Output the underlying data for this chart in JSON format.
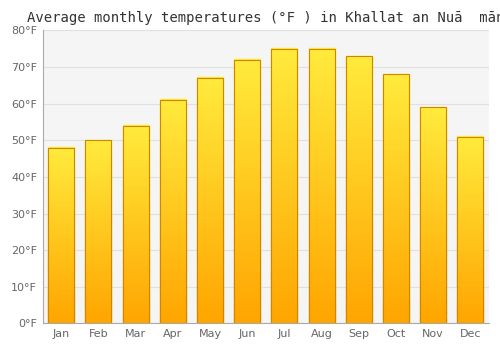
{
  "title": "Average monthly temperatures (°F ) in Khallat an Nuā  mān",
  "months": [
    "Jan",
    "Feb",
    "Mar",
    "Apr",
    "May",
    "Jun",
    "Jul",
    "Aug",
    "Sep",
    "Oct",
    "Nov",
    "Dec"
  ],
  "values": [
    48,
    50,
    54,
    61,
    67,
    72,
    75,
    75,
    73,
    68,
    59,
    51
  ],
  "ylim": [
    0,
    80
  ],
  "yticks": [
    0,
    10,
    20,
    30,
    40,
    50,
    60,
    70,
    80
  ],
  "ytick_labels": [
    "0°F",
    "10°F",
    "20°F",
    "30°F",
    "40°F",
    "50°F",
    "60°F",
    "70°F",
    "80°F"
  ],
  "bar_color_center": "#FFD97A",
  "bar_color_edge": "#FFA500",
  "bar_border_color": "#CC8800",
  "background_color": "#ffffff",
  "plot_bg_color": "#f5f5f5",
  "grid_color": "#e0e0e0",
  "title_fontsize": 10,
  "tick_fontsize": 8,
  "bar_width": 0.7
}
